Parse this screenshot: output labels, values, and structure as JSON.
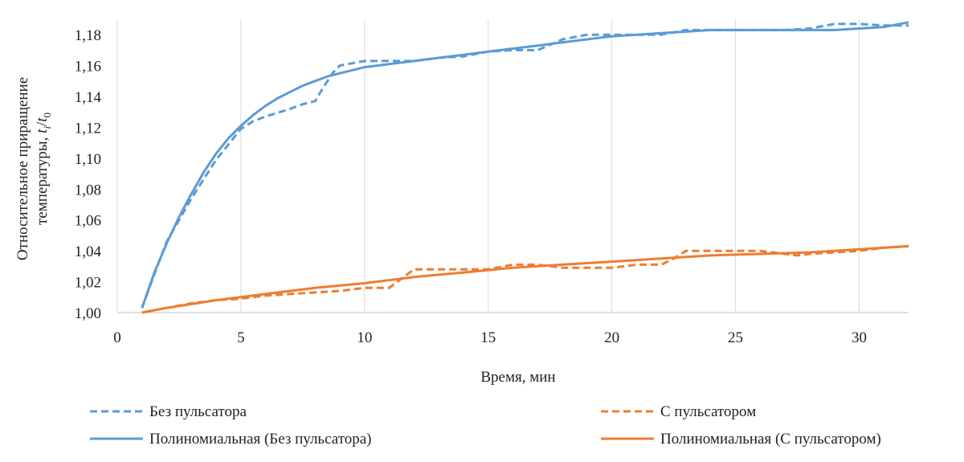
{
  "chart_data": {
    "type": "line",
    "xlabel": "Время, мин",
    "ylabel_line1": "Относительное приращение",
    "ylabel_line2": "температуры, ",
    "ylabel_math": "t",
    "ylabel_sub_i": "i",
    "ylabel_slash": "/",
    "ylabel_sub_0": "0",
    "xlim": [
      0,
      32
    ],
    "ylim": [
      1.0,
      1.19
    ],
    "x_ticks": [
      0,
      5,
      10,
      15,
      20,
      25,
      30
    ],
    "x_tick_labels": [
      "0",
      "5",
      "10",
      "15",
      "20",
      "25",
      "30"
    ],
    "y_ticks": [
      1.0,
      1.02,
      1.04,
      1.06,
      1.08,
      1.1,
      1.12,
      1.14,
      1.16,
      1.18
    ],
    "y_tick_labels": [
      "1,00",
      "1,02",
      "1,04",
      "1,06",
      "1,08",
      "1,10",
      "1,12",
      "1,14",
      "1,16",
      "1,18"
    ],
    "grid": "vertical",
    "legend_position": "bottom",
    "colors": {
      "blue": "#5b9bd5",
      "orange": "#ed7d31",
      "grid": "#d9d9d9",
      "axis": "#bfbfbf"
    },
    "series": [
      {
        "name": "Без пульсатора",
        "style": "dashed",
        "color": "#5b9bd5",
        "x": [
          1,
          1.5,
          2,
          3,
          4,
          5,
          5.5,
          6,
          7,
          7.5,
          8,
          8.3,
          8.7,
          9,
          10,
          11,
          12,
          13,
          14,
          15,
          16,
          17,
          18,
          19,
          20,
          21,
          22,
          23,
          24,
          25,
          26,
          27,
          28,
          29,
          30,
          31,
          32
        ],
        "y": [
          1.003,
          1.025,
          1.046,
          1.074,
          1.099,
          1.119,
          1.124,
          1.127,
          1.132,
          1.135,
          1.137,
          1.145,
          1.155,
          1.16,
          1.163,
          1.163,
          1.163,
          1.165,
          1.166,
          1.169,
          1.17,
          1.17,
          1.177,
          1.18,
          1.18,
          1.18,
          1.18,
          1.183,
          1.183,
          1.183,
          1.183,
          1.183,
          1.184,
          1.187,
          1.187,
          1.186,
          1.186
        ]
      },
      {
        "name": "С пульсатором",
        "style": "dashed",
        "color": "#ed7d31",
        "x": [
          1,
          2,
          3,
          4,
          5,
          6,
          7,
          8,
          9,
          10,
          11,
          11.5,
          12,
          13,
          14,
          15,
          16,
          17,
          18,
          19,
          20,
          21,
          22,
          22.5,
          23,
          24,
          25,
          26,
          27,
          27.5,
          28,
          29,
          30,
          31,
          32
        ],
        "y": [
          1.0,
          1.003,
          1.006,
          1.008,
          1.009,
          1.011,
          1.012,
          1.013,
          1.014,
          1.016,
          1.016,
          1.022,
          1.028,
          1.028,
          1.028,
          1.028,
          1.031,
          1.031,
          1.029,
          1.029,
          1.029,
          1.031,
          1.031,
          1.035,
          1.04,
          1.04,
          1.04,
          1.04,
          1.038,
          1.037,
          1.038,
          1.039,
          1.04,
          1.042,
          1.043
        ]
      },
      {
        "name": "Полиномиальная (Без пульсатора)",
        "style": "solid",
        "color": "#5b9bd5",
        "x": [
          1,
          1.5,
          2,
          2.5,
          3,
          3.5,
          4,
          4.5,
          5,
          5.5,
          6,
          6.5,
          7,
          7.5,
          8,
          8.5,
          9,
          9.5,
          10,
          11,
          12,
          13,
          14,
          15,
          16,
          17,
          18,
          19,
          20,
          21,
          22,
          23,
          24,
          25,
          26,
          27,
          28,
          29,
          30,
          31,
          32
        ],
        "y": [
          1.003,
          1.026,
          1.045,
          1.062,
          1.077,
          1.091,
          1.103,
          1.113,
          1.121,
          1.128,
          1.134,
          1.139,
          1.143,
          1.147,
          1.15,
          1.153,
          1.155,
          1.157,
          1.159,
          1.161,
          1.163,
          1.165,
          1.167,
          1.169,
          1.171,
          1.173,
          1.175,
          1.177,
          1.179,
          1.18,
          1.181,
          1.182,
          1.183,
          1.183,
          1.183,
          1.183,
          1.183,
          1.183,
          1.184,
          1.185,
          1.188
        ]
      },
      {
        "name": "Полиномиальная (С пульсатором)",
        "style": "solid",
        "color": "#ed7d31",
        "x": [
          1,
          2,
          4,
          6,
          8,
          10,
          12,
          14,
          16,
          18,
          20,
          22,
          24,
          26,
          28,
          30,
          32
        ],
        "y": [
          1.0,
          1.003,
          1.008,
          1.012,
          1.016,
          1.019,
          1.023,
          1.026,
          1.029,
          1.031,
          1.033,
          1.035,
          1.037,
          1.038,
          1.039,
          1.041,
          1.043
        ]
      }
    ]
  }
}
